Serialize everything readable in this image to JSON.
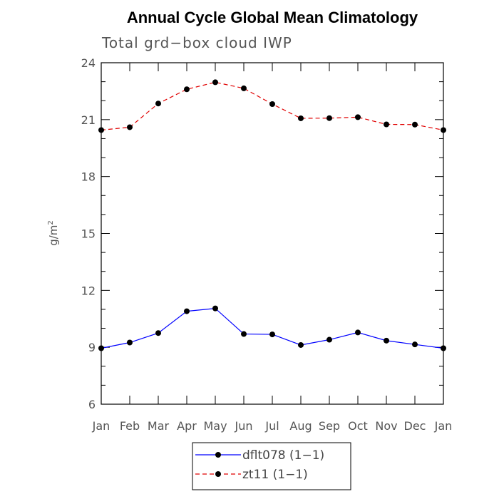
{
  "chart_data": {
    "type": "line",
    "title": "Annual Cycle Global Mean Climatology",
    "subtitle": "Total grd−box cloud IWP",
    "ylabel": "g/m",
    "ylabel_sup": "2",
    "xlabel": "",
    "categories": [
      "Jan",
      "Feb",
      "Mar",
      "Apr",
      "May",
      "Jun",
      "Jul",
      "Aug",
      "Sep",
      "Oct",
      "Nov",
      "Dec",
      "Jan"
    ],
    "ylim": [
      6,
      24
    ],
    "yticks": [
      "6",
      "9",
      "12",
      "15",
      "18",
      "21",
      "24"
    ],
    "grid": false,
    "legend_position": "bottom",
    "series": [
      {
        "name": "dflt078 (1−1)",
        "color": "#0000ff",
        "style": "solid",
        "marker": "filled-circle",
        "values": [
          8.95,
          9.25,
          9.75,
          10.9,
          11.05,
          9.7,
          9.68,
          9.12,
          9.4,
          9.78,
          9.35,
          9.15,
          8.95
        ]
      },
      {
        "name": "zt11 (1−1)",
        "color": "#e00000",
        "style": "dashed",
        "marker": "filled-circle",
        "values": [
          20.45,
          20.6,
          21.85,
          22.6,
          22.97,
          22.65,
          21.82,
          21.07,
          21.08,
          21.13,
          20.75,
          20.74,
          20.45
        ]
      }
    ]
  }
}
